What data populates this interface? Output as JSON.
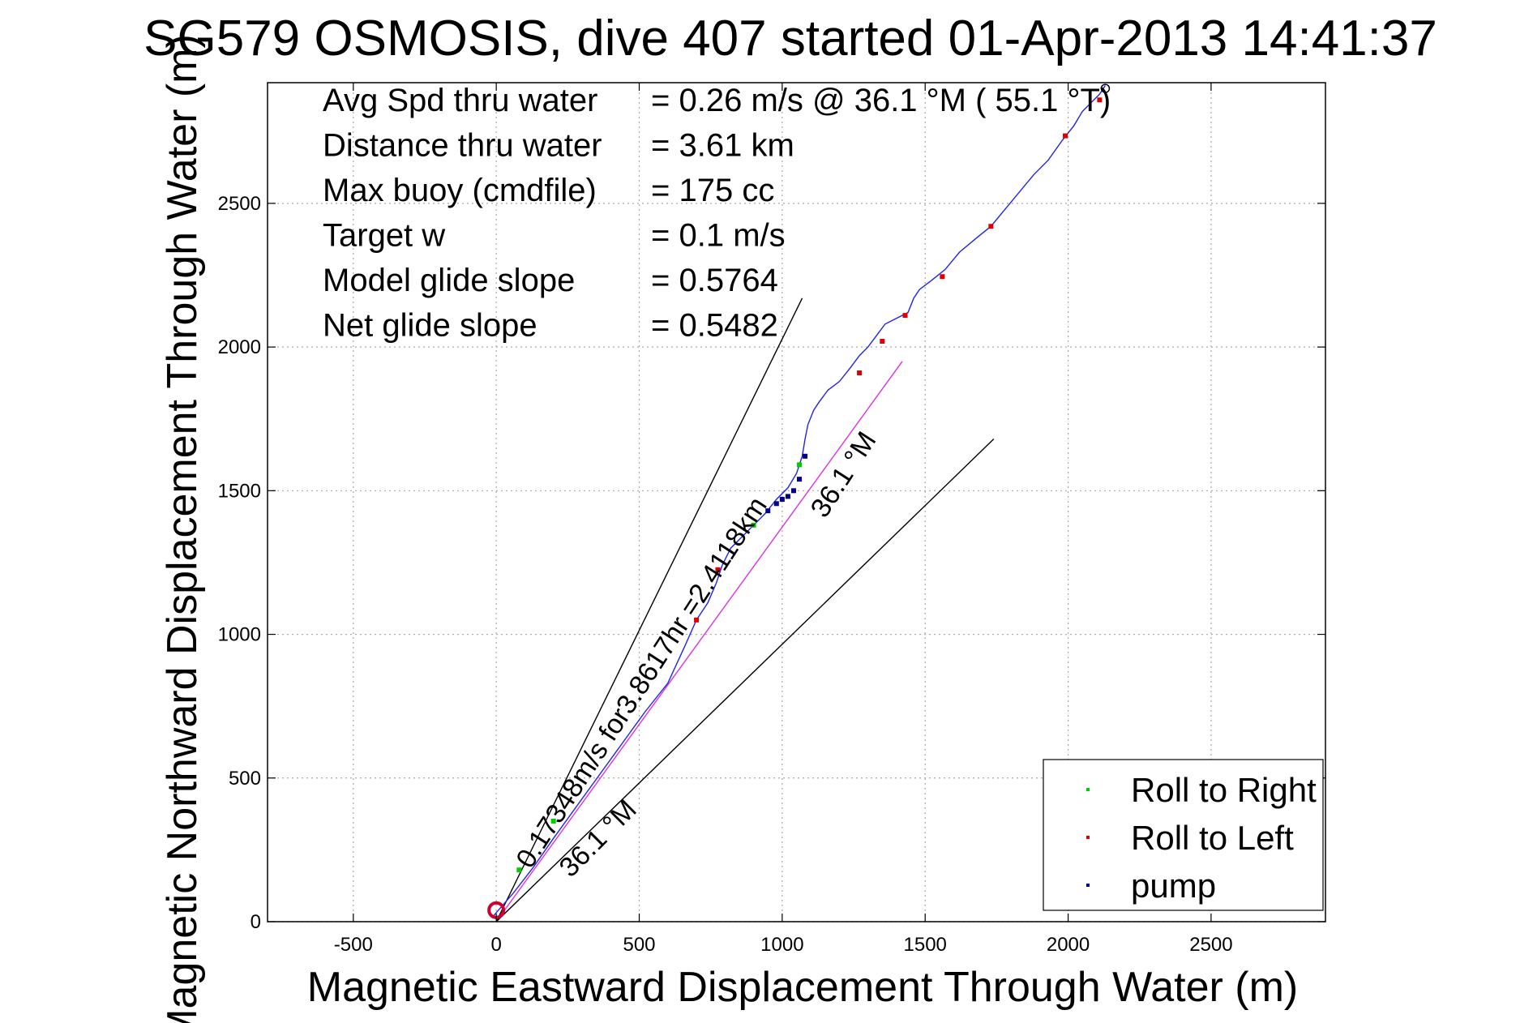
{
  "chart_data": {
    "type": "line",
    "title": "SG579 OSMOSIS, dive 407 started 01-Apr-2013 14:41:37",
    "xlabel": "Magnetic Eastward Displacement Through Water (m)",
    "ylabel": "Magnetic Northward Displacement Through Water (m)",
    "xlim": [
      -800,
      2900
    ],
    "ylim": [
      0,
      2920
    ],
    "xticks": [
      -500,
      0,
      500,
      1000,
      1500,
      2000,
      2500
    ],
    "yticks": [
      0,
      500,
      1000,
      1500,
      2000,
      2500
    ],
    "grid": true,
    "stats": [
      {
        "label": "Avg Spd thru water",
        "value": "=  0.26 m/s @  36.1 °M ( 55.1 °T)"
      },
      {
        "label": "Distance thru water",
        "value": "=  3.61 km"
      },
      {
        "label": "Max buoy (cmdfile)",
        "value": "= 175 cc"
      },
      {
        "label": "Target w",
        "value": "= 0.1 m/s"
      },
      {
        "label": "Model glide slope",
        "value": "= 0.5764"
      },
      {
        "label": "Net glide slope",
        "value": "= 0.5482"
      }
    ],
    "track": {
      "name": "glider track",
      "color": "#2222ee",
      "x": [
        -10,
        60,
        130,
        200,
        280,
        360,
        440,
        520,
        600,
        660,
        700,
        740,
        770,
        790,
        820,
        860,
        900,
        940,
        980,
        1020,
        1050,
        1070,
        1080,
        1090,
        1110,
        1130,
        1160,
        1200,
        1240,
        1270,
        1300,
        1330,
        1360,
        1400,
        1440,
        1460,
        1480,
        1520,
        1570,
        1620,
        1680,
        1730,
        1780,
        1830,
        1880,
        1930,
        1980,
        2020,
        2050,
        2080,
        2110,
        2130
      ],
      "y": [
        20,
        100,
        190,
        290,
        400,
        510,
        620,
        730,
        830,
        960,
        1050,
        1110,
        1180,
        1240,
        1300,
        1340,
        1380,
        1420,
        1470,
        1510,
        1560,
        1620,
        1680,
        1730,
        1780,
        1810,
        1850,
        1880,
        1930,
        1970,
        2000,
        2040,
        2080,
        2100,
        2120,
        2170,
        2200,
        2230,
        2270,
        2330,
        2380,
        2420,
        2480,
        2540,
        2600,
        2650,
        2720,
        2770,
        2820,
        2850,
        2880,
        2910
      ]
    },
    "reference_lines": [
      {
        "name": "net-heading-line",
        "color": "#e030e0",
        "x": [
          0,
          1420
        ],
        "y": [
          0,
          1950
        ]
      },
      {
        "name": "envelope-upper-line",
        "color": "#000000",
        "x": [
          0,
          1070
        ],
        "y": [
          0,
          2170
        ]
      },
      {
        "name": "envelope-lower-line",
        "color": "#000000",
        "x": [
          0,
          1740
        ],
        "y": [
          0,
          1680
        ]
      }
    ],
    "annotations": [
      {
        "text": "0.17348m/s for3.8617hr =2.4118km",
        "x": 120,
        "y": 180,
        "angle": 57
      },
      {
        "text": "36.1 °M",
        "x": 260,
        "y": 150,
        "angle": 45
      },
      {
        "text": "36.1 °M",
        "x": 1150,
        "y": 1400,
        "angle": 57
      }
    ],
    "markers": [
      {
        "series": "Roll to Right",
        "color": "#00cc00",
        "x": [
          80,
          200,
          900,
          1060
        ],
        "y": [
          180,
          350,
          1380,
          1590
        ]
      },
      {
        "series": "Roll to Left",
        "color": "#dd0000",
        "x": [
          700,
          775,
          1270,
          1350,
          1430,
          1560,
          1730,
          1990,
          2110
        ],
        "y": [
          1050,
          1225,
          1910,
          2020,
          2110,
          2245,
          2420,
          2735,
          2860
        ]
      },
      {
        "series": "pump",
        "color": "#000088",
        "x": [
          950,
          980,
          1000,
          1020,
          1040,
          1060,
          1080
        ],
        "y": [
          1430,
          1455,
          1470,
          1480,
          1500,
          1540,
          1620
        ]
      }
    ],
    "start_marker": {
      "x": 0,
      "y": 40,
      "color": "#cc0033"
    },
    "end_marker": {
      "x": 2130,
      "y": 2900,
      "color": "#000000"
    },
    "legend": {
      "position": "bottom-right",
      "entries": [
        {
          "label": "Roll to Right",
          "color": "#00cc00"
        },
        {
          "label": "Roll to Left",
          "color": "#dd0000"
        },
        {
          "label": "pump",
          "color": "#000088"
        }
      ]
    }
  }
}
